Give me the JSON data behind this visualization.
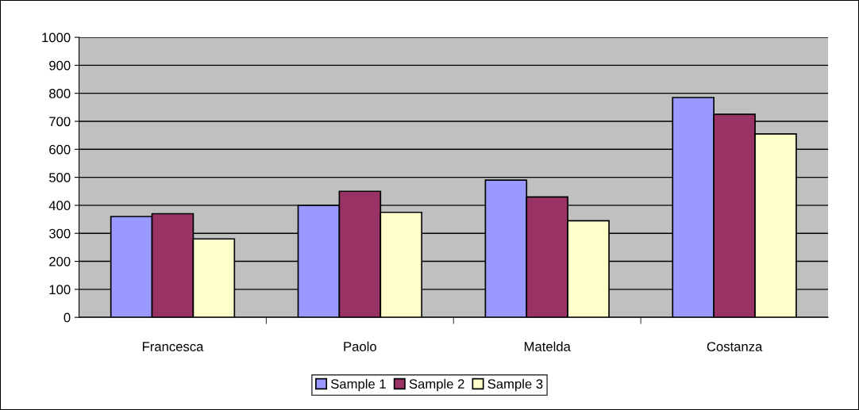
{
  "chart_data": {
    "type": "bar",
    "categories": [
      "Francesca",
      "Paolo",
      "Matelda",
      "Costanza"
    ],
    "series": [
      {
        "name": "Sample 1",
        "color": "#9999ff",
        "values": [
          360,
          400,
          490,
          785
        ]
      },
      {
        "name": "Sample 2",
        "color": "#993366",
        "values": [
          370,
          450,
          430,
          725
        ]
      },
      {
        "name": "Sample 3",
        "color": "#ffffcc",
        "values": [
          280,
          375,
          345,
          655
        ]
      }
    ],
    "ylim": [
      0,
      1000
    ],
    "yticks": [
      0,
      100,
      200,
      300,
      400,
      500,
      600,
      700,
      800,
      900,
      1000
    ],
    "grid": "y",
    "legend": "bottom"
  }
}
